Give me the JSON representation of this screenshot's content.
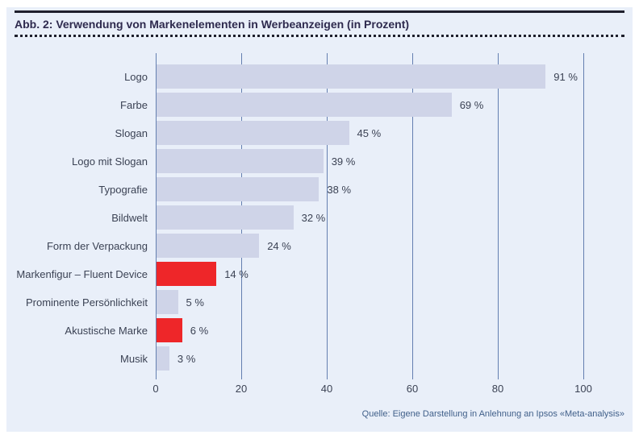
{
  "figure": {
    "title": "Abb. 2: Verwendung von Markenelementen in Werbeanzeigen (in Prozent)",
    "source": "Quelle: Eigene Darstellung in Anlehnung an Ipsos «Meta-analysis»"
  },
  "chart_data": {
    "type": "bar",
    "orientation": "horizontal",
    "title": "Abb. 2: Verwendung von Markenelementen in Werbeanzeigen (in Prozent)",
    "xlabel": "",
    "ylabel": "",
    "xlim": [
      0,
      100
    ],
    "x_ticks": [
      0,
      20,
      40,
      60,
      80,
      100
    ],
    "grid": true,
    "legend": false,
    "categories": [
      "Logo",
      "Farbe",
      "Slogan",
      "Logo mit Slogan",
      "Typografie",
      "Bildwelt",
      "Form der Verpackung",
      "Markenfigur – Fluent Device",
      "Prominente Persönlichkeit",
      "Akustische Marke",
      "Musik"
    ],
    "values": [
      91,
      69,
      45,
      39,
      38,
      32,
      24,
      14,
      5,
      6,
      3
    ],
    "value_labels": [
      "91 %",
      "69 %",
      "45 %",
      "39 %",
      "38 %",
      "32 %",
      "24 %",
      "14 %",
      "5 %",
      "6 %",
      "3 %"
    ],
    "highlighted_categories": [
      "Markenfigur – Fluent Device",
      "Akustische Marke"
    ],
    "highlight_indexes": [
      7,
      9
    ],
    "colors": {
      "bar": "#cfd4e8",
      "highlight": "#ee2629",
      "gridline": "#647fb0",
      "panel_background": "#e9eff9",
      "text": "#3b4254",
      "title_text": "#2e2a4e",
      "source_text": "#41608a"
    }
  }
}
